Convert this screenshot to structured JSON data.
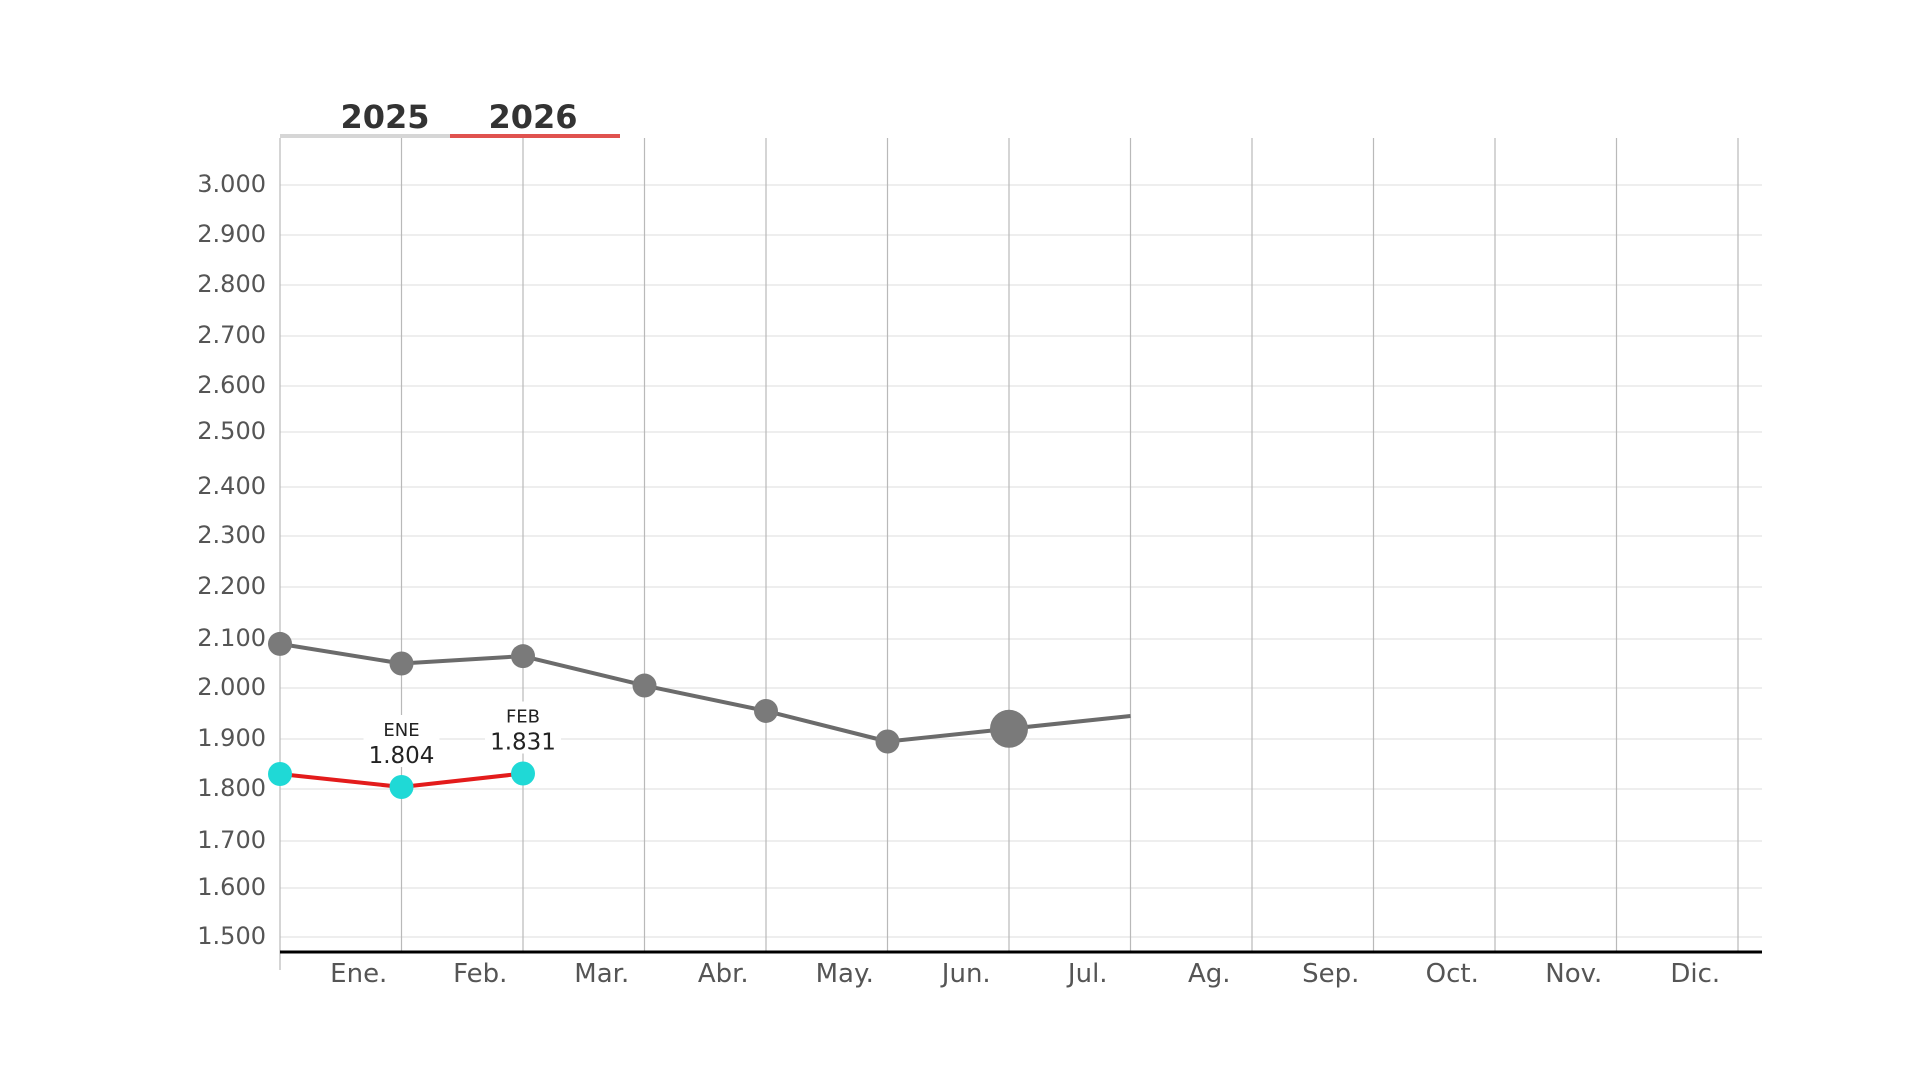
{
  "chart_data": {
    "type": "line",
    "categories": [
      "",
      "Ene.",
      "Feb.",
      "Mar.",
      "Abr.",
      "May.",
      "Jun.",
      "Jul.",
      "Ag.",
      "Sep.",
      "Oct.",
      "Nov.",
      "Dic."
    ],
    "y_ticks": [
      "1.500",
      "1.600",
      "1.700",
      "1.800",
      "1.900",
      "2.000",
      "2.100",
      "2.200",
      "2.300",
      "2.400",
      "2.500",
      "2.600",
      "2.700",
      "2.800",
      "2.900",
      "3.000"
    ],
    "y_tick_values": [
      1500,
      1600,
      1700,
      1800,
      1900,
      2000,
      2100,
      2200,
      2300,
      2400,
      2500,
      2600,
      2700,
      2800,
      2900,
      3000
    ],
    "ylim": [
      1480,
      3100
    ],
    "grid": true,
    "legend": {
      "placement": "top-left",
      "items": [
        {
          "label": "2025",
          "color": "#d6d6d6"
        },
        {
          "label": "2026",
          "color": "#e0524f"
        }
      ]
    },
    "series": [
      {
        "name": "2025",
        "color": "#6b6b6b",
        "marker_color": "#7a7a7a",
        "points": [
          {
            "x": 0,
            "y": 2090
          },
          {
            "x": 1,
            "y": 2050
          },
          {
            "x": 2,
            "y": 2065
          },
          {
            "x": 3,
            "y": 2005
          },
          {
            "x": 4,
            "y": 1955
          },
          {
            "x": 5,
            "y": 1895
          },
          {
            "x": 6,
            "y": 1920,
            "highlight": true
          },
          {
            "x": 7,
            "y": 1945,
            "marker": false
          }
        ]
      },
      {
        "name": "2026",
        "color": "#e31b1b",
        "marker_color": "#1fd9d6",
        "points": [
          {
            "x": 0,
            "y": 1830
          },
          {
            "x": 1,
            "y": 1804,
            "label_month": "ENE",
            "label_value": "1.804"
          },
          {
            "x": 2,
            "y": 1831,
            "label_month": "FEB",
            "label_value": "1.831"
          }
        ]
      }
    ]
  }
}
